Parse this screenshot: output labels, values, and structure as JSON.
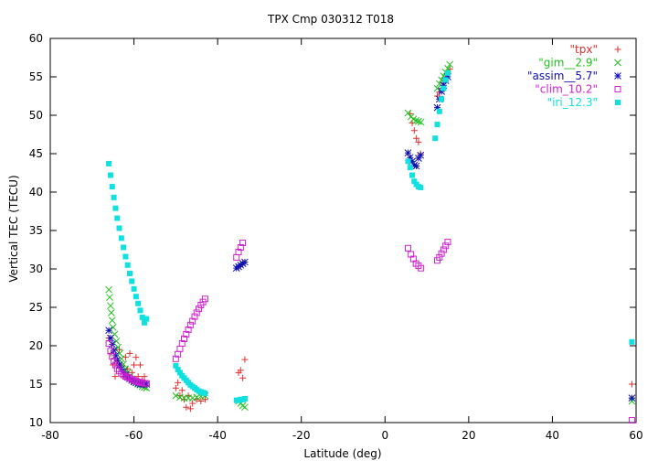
{
  "chart_data": {
    "type": "scatter",
    "title": "TPX Cmp 030312 T018",
    "xlabel": "Latitude (deg)",
    "ylabel": "Vertical TEC (TECU)",
    "xlim": [
      -80,
      60
    ],
    "ylim": [
      10,
      60
    ],
    "xticks": [
      -80,
      -60,
      -40,
      -20,
      0,
      20,
      40,
      60
    ],
    "yticks": [
      10,
      15,
      20,
      25,
      30,
      35,
      40,
      45,
      50,
      55,
      60
    ],
    "grid": false,
    "legend_position": "top-right",
    "series": [
      {
        "name": "\"tpx\"",
        "marker": "plus",
        "color": "#e03030",
        "points": [
          [
            -66,
            21
          ],
          [
            -65.5,
            19
          ],
          [
            -65,
            17.5
          ],
          [
            -64.5,
            16
          ],
          [
            -64,
            18
          ],
          [
            -63.5,
            19.5
          ],
          [
            -63,
            17.5
          ],
          [
            -62.5,
            16
          ],
          [
            -62,
            18.5
          ],
          [
            -61.5,
            17
          ],
          [
            -61,
            19
          ],
          [
            -60.5,
            16.5
          ],
          [
            -60,
            17.5
          ],
          [
            -59.5,
            18.5
          ],
          [
            -59,
            16
          ],
          [
            -58.5,
            17.5
          ],
          [
            -58,
            15.5
          ],
          [
            -57.5,
            16
          ],
          [
            -57,
            15
          ],
          [
            -50,
            14.5
          ],
          [
            -49.5,
            15.2
          ],
          [
            -49,
            13.5
          ],
          [
            -48.5,
            14.2
          ],
          [
            -48,
            13
          ],
          [
            -47.5,
            12
          ],
          [
            -47,
            13.5
          ],
          [
            -46.5,
            11.8
          ],
          [
            -46,
            12.5
          ],
          [
            -45,
            13
          ],
          [
            -44,
            12.8
          ],
          [
            -43,
            13
          ],
          [
            -35,
            16.5
          ],
          [
            -34.5,
            16.8
          ],
          [
            -34,
            15.8
          ],
          [
            -33.5,
            18.2
          ],
          [
            6,
            50.2
          ],
          [
            6.5,
            49
          ],
          [
            7,
            48
          ],
          [
            7.5,
            47
          ],
          [
            8,
            46.5
          ],
          [
            8.5,
            45
          ],
          [
            12.5,
            52.5
          ],
          [
            13,
            53
          ],
          [
            13.5,
            53.5
          ],
          [
            14,
            54.2
          ],
          [
            14.5,
            54.8
          ],
          [
            15,
            55.5
          ],
          [
            15.5,
            56
          ],
          [
            59,
            15
          ]
        ]
      },
      {
        "name": "\"gim__2.9\"",
        "marker": "cross",
        "color": "#20c020",
        "points": [
          [
            -66,
            27.3
          ],
          [
            -65.8,
            26.3
          ],
          [
            -65.6,
            25.2
          ],
          [
            -65.4,
            24.3
          ],
          [
            -65.2,
            23.3
          ],
          [
            -65,
            22.4
          ],
          [
            -64.6,
            21.5
          ],
          [
            -64.2,
            20.6
          ],
          [
            -63.8,
            19.8
          ],
          [
            -63.4,
            19
          ],
          [
            -63,
            18.3
          ],
          [
            -62.5,
            17.6
          ],
          [
            -62,
            17
          ],
          [
            -61.5,
            16.5
          ],
          [
            -61,
            16
          ],
          [
            -60.5,
            15.7
          ],
          [
            -60,
            15.4
          ],
          [
            -59.5,
            15.2
          ],
          [
            -59,
            15
          ],
          [
            -58.5,
            14.9
          ],
          [
            -58,
            14.7
          ],
          [
            -57.5,
            14.6
          ],
          [
            -57,
            14.5
          ],
          [
            -50,
            13.5
          ],
          [
            -49,
            13.3
          ],
          [
            -48,
            13.2
          ],
          [
            -47,
            13.2
          ],
          [
            -46,
            13.2
          ],
          [
            -45,
            13.3
          ],
          [
            -44,
            13.4
          ],
          [
            -43,
            13.5
          ],
          [
            -35,
            12.8
          ],
          [
            -34.5,
            12.5
          ],
          [
            -34,
            12.2
          ],
          [
            -33.5,
            12
          ],
          [
            5.5,
            50.3
          ],
          [
            6.2,
            49.8
          ],
          [
            6.8,
            49.5
          ],
          [
            7.4,
            49.3
          ],
          [
            8,
            49.2
          ],
          [
            8.6,
            49.1
          ],
          [
            12.5,
            53.5
          ],
          [
            13,
            54.1
          ],
          [
            13.5,
            54.6
          ],
          [
            14,
            55.1
          ],
          [
            14.5,
            55.6
          ],
          [
            15,
            56.1
          ],
          [
            15.5,
            56.6
          ],
          [
            59,
            12.8
          ]
        ]
      },
      {
        "name": "\"assim__5.7\"",
        "marker": "star",
        "color": "#1010b0",
        "points": [
          [
            -66,
            22
          ],
          [
            -65.6,
            21
          ],
          [
            -65.2,
            20.2
          ],
          [
            -64.8,
            19.4
          ],
          [
            -64.4,
            18.7
          ],
          [
            -64,
            18.1
          ],
          [
            -63.5,
            17.5
          ],
          [
            -63,
            17
          ],
          [
            -62.5,
            16.6
          ],
          [
            -62,
            16.2
          ],
          [
            -61.5,
            15.9
          ],
          [
            -61,
            15.7
          ],
          [
            -60.5,
            15.5
          ],
          [
            -60,
            15.3
          ],
          [
            -59.5,
            15.2
          ],
          [
            -59,
            15.1
          ],
          [
            -58.5,
            15
          ],
          [
            -58,
            15
          ],
          [
            -57.5,
            15
          ],
          [
            -57,
            15
          ],
          [
            -35.5,
            30.1
          ],
          [
            -35,
            30.3
          ],
          [
            -34.5,
            30.5
          ],
          [
            -34,
            30.7
          ],
          [
            -33.5,
            30.9
          ],
          [
            5.5,
            45.1
          ],
          [
            6,
            44.5
          ],
          [
            6.5,
            44
          ],
          [
            7,
            43.5
          ],
          [
            7.5,
            43.4
          ],
          [
            8,
            44.4
          ],
          [
            8.5,
            44.8
          ],
          [
            12.5,
            51
          ],
          [
            13,
            52.1
          ],
          [
            13.5,
            53.1
          ],
          [
            14,
            53.9
          ],
          [
            14.5,
            54.5
          ],
          [
            15,
            55
          ],
          [
            59,
            13.2
          ]
        ]
      },
      {
        "name": "\"clim_10.2\"",
        "marker": "square",
        "color": "#d020d0",
        "points": [
          [
            -66,
            20.3
          ],
          [
            -65.6,
            19.3
          ],
          [
            -65.2,
            18.6
          ],
          [
            -64.8,
            18
          ],
          [
            -64.4,
            17.5
          ],
          [
            -64,
            17
          ],
          [
            -63.5,
            16.7
          ],
          [
            -63,
            16.4
          ],
          [
            -62.5,
            16.2
          ],
          [
            -62,
            16
          ],
          [
            -61.5,
            15.9
          ],
          [
            -61,
            15.8
          ],
          [
            -60.5,
            15.6
          ],
          [
            -60,
            15.5
          ],
          [
            -59.5,
            15.4
          ],
          [
            -59,
            15.3
          ],
          [
            -58.5,
            15.2
          ],
          [
            -58,
            15.2
          ],
          [
            -57.5,
            15.1
          ],
          [
            -57,
            15.1
          ],
          [
            -50,
            18.3
          ],
          [
            -49.5,
            18.9
          ],
          [
            -49,
            19.6
          ],
          [
            -48.5,
            20.3
          ],
          [
            -48,
            20.9
          ],
          [
            -47.5,
            21.5
          ],
          [
            -47,
            22.1
          ],
          [
            -46.5,
            22.7
          ],
          [
            -46,
            23.2
          ],
          [
            -45.5,
            23.8
          ],
          [
            -45,
            24.3
          ],
          [
            -44.5,
            24.8
          ],
          [
            -44,
            25.3
          ],
          [
            -43.5,
            25.7
          ],
          [
            -43,
            26.1
          ],
          [
            -35.5,
            31.5
          ],
          [
            -35,
            32.2
          ],
          [
            -34.5,
            32.8
          ],
          [
            -34,
            33.4
          ],
          [
            5.5,
            32.7
          ],
          [
            6.2,
            31.9
          ],
          [
            6.8,
            31.3
          ],
          [
            7.4,
            30.7
          ],
          [
            8,
            30.4
          ],
          [
            8.6,
            30.1
          ],
          [
            12.5,
            31.1
          ],
          [
            13,
            31.5
          ],
          [
            13.5,
            32
          ],
          [
            14,
            32.5
          ],
          [
            14.5,
            33
          ],
          [
            15,
            33.5
          ],
          [
            59,
            10.3
          ]
        ]
      },
      {
        "name": "\"iri_12.3\"",
        "marker": "filled-square",
        "color": "#10e0e0",
        "points": [
          [
            -66,
            43.7
          ],
          [
            -65.6,
            42.2
          ],
          [
            -65.2,
            40.7
          ],
          [
            -64.8,
            39.3
          ],
          [
            -64.4,
            37.9
          ],
          [
            -64,
            36.6
          ],
          [
            -63.5,
            35.3
          ],
          [
            -63,
            34
          ],
          [
            -62.5,
            32.8
          ],
          [
            -62,
            31.6
          ],
          [
            -61.5,
            30.5
          ],
          [
            -61,
            29.4
          ],
          [
            -60.5,
            28.4
          ],
          [
            -60,
            27.4
          ],
          [
            -59.5,
            26.4
          ],
          [
            -59,
            25.5
          ],
          [
            -58.5,
            24.6
          ],
          [
            -58,
            23.7
          ],
          [
            -57.5,
            23
          ],
          [
            -57,
            23.5
          ],
          [
            -50,
            17.4
          ],
          [
            -49.5,
            16.9
          ],
          [
            -49,
            16.5
          ],
          [
            -48.5,
            16.1
          ],
          [
            -48,
            15.8
          ],
          [
            -47.5,
            15.5
          ],
          [
            -47,
            15.2
          ],
          [
            -46.5,
            14.9
          ],
          [
            -46,
            14.7
          ],
          [
            -45.5,
            14.5
          ],
          [
            -45,
            14.3
          ],
          [
            -44.5,
            14.1
          ],
          [
            -44,
            14
          ],
          [
            -43.5,
            13.9
          ],
          [
            -43,
            13.8
          ],
          [
            -35.5,
            12.9
          ],
          [
            -35,
            12.9
          ],
          [
            -34.5,
            13
          ],
          [
            -34,
            13
          ],
          [
            -33.5,
            13.1
          ],
          [
            5.5,
            44
          ],
          [
            6,
            43.2
          ],
          [
            6.5,
            42.2
          ],
          [
            7,
            41.4
          ],
          [
            7.5,
            41
          ],
          [
            8,
            40.7
          ],
          [
            8.5,
            40.6
          ],
          [
            12,
            47
          ],
          [
            12.5,
            48.8
          ],
          [
            13,
            50.5
          ],
          [
            13.5,
            52.1
          ],
          [
            14,
            53.5
          ],
          [
            14.5,
            54.6
          ],
          [
            15,
            55.5
          ],
          [
            59,
            20.5
          ]
        ]
      }
    ]
  }
}
